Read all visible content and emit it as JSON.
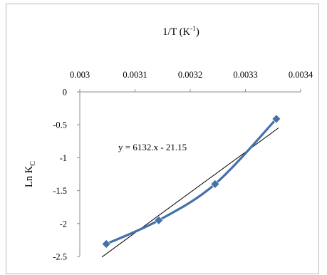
{
  "chart_data": {
    "type": "scatter",
    "title": "1/T (K⁻¹)",
    "title_parts": {
      "main": "1/T (K",
      "sup": "-1",
      "close": ")"
    },
    "xlabel": "1/T (K⁻¹)",
    "ylabel": "Ln K_C",
    "ylabel_parts": {
      "main": "Ln K",
      "sub": "C"
    },
    "x_axis_position": "top",
    "xlim": [
      0.003,
      0.0034
    ],
    "ylim": [
      -2.5,
      0
    ],
    "xticks": [
      "0.003",
      "0.0031",
      "0.0032",
      "0.0033",
      "0.0034"
    ],
    "yticks": [
      "0",
      "-0.5",
      "-1",
      "-1.5",
      "-2",
      "-2.5"
    ],
    "series": [
      {
        "values_x": [
          0.003048,
          0.003143,
          0.003245,
          0.003356
        ],
        "values_y": [
          -2.31,
          -1.95,
          -1.4,
          -0.41
        ],
        "color": "#4472a8",
        "marker": "diamond",
        "line": "smooth"
      }
    ],
    "trendline": {
      "equation": "y = 6132.x - 21.15",
      "slope": 6132,
      "intercept": -21.15,
      "x_range": [
        0.00304,
        0.00336
      ],
      "color": "#000000"
    },
    "grid": false,
    "legend": "none"
  }
}
